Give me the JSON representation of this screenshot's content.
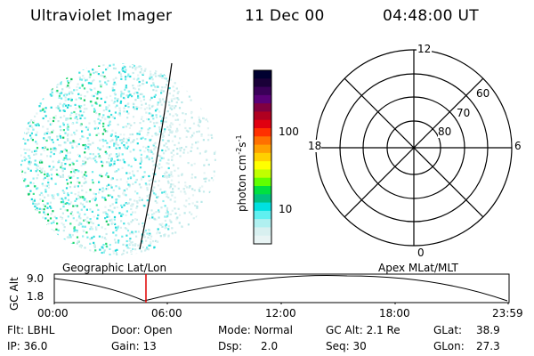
{
  "header": {
    "instrument": "Ultraviolet Imager",
    "date": "11 Dec 00",
    "time": "04:48:00 UT"
  },
  "colorbar": {
    "unit_label": "photon cm",
    "unit_exp1": "-2",
    "unit_s": "s",
    "unit_exp2": "-1",
    "tick_high": "100",
    "tick_low": "10",
    "colors": [
      "#000030",
      "#1a0038",
      "#3a0058",
      "#5a0078",
      "#800040",
      "#b00020",
      "#e00010",
      "#ff3000",
      "#ff7000",
      "#ffa000",
      "#ffd000",
      "#ffff00",
      "#c0ff00",
      "#60ff00",
      "#00e040",
      "#00c080",
      "#00e0e0",
      "#60f0f0",
      "#b0f0f0",
      "#d8f0f0",
      "#e8f4f4"
    ]
  },
  "polar_plot": {
    "label_top": "12",
    "label_bottom": "0",
    "label_left": "18",
    "label_right": "6",
    "ring_labels": [
      "60",
      "70",
      "80"
    ]
  },
  "timeline": {
    "left_title": "Geographic Lat/Lon",
    "right_title": "Apex MLat/MLT",
    "ylabel": "GC Alt",
    "ytick_high": "9.0",
    "ytick_low": "1.8",
    "xticks": [
      "00:00",
      "06:00",
      "12:00",
      "18:00",
      "23:59"
    ],
    "marker_color": "#e00000"
  },
  "info": {
    "flt": "Flt: LBHL",
    "ip": "IP: 36.0",
    "door": "Door: Open",
    "gain": "Gain: 13",
    "mode": "Mode: Normal",
    "dsp_label": "Dsp:",
    "dsp_value": "2.0",
    "gcalt": "GC Alt: 2.1 Re",
    "seq": "Seq: 30",
    "glat_label": "GLat:",
    "glat_value": "38.9",
    "glon_label": "GLon:",
    "glon_value": "27.3"
  }
}
